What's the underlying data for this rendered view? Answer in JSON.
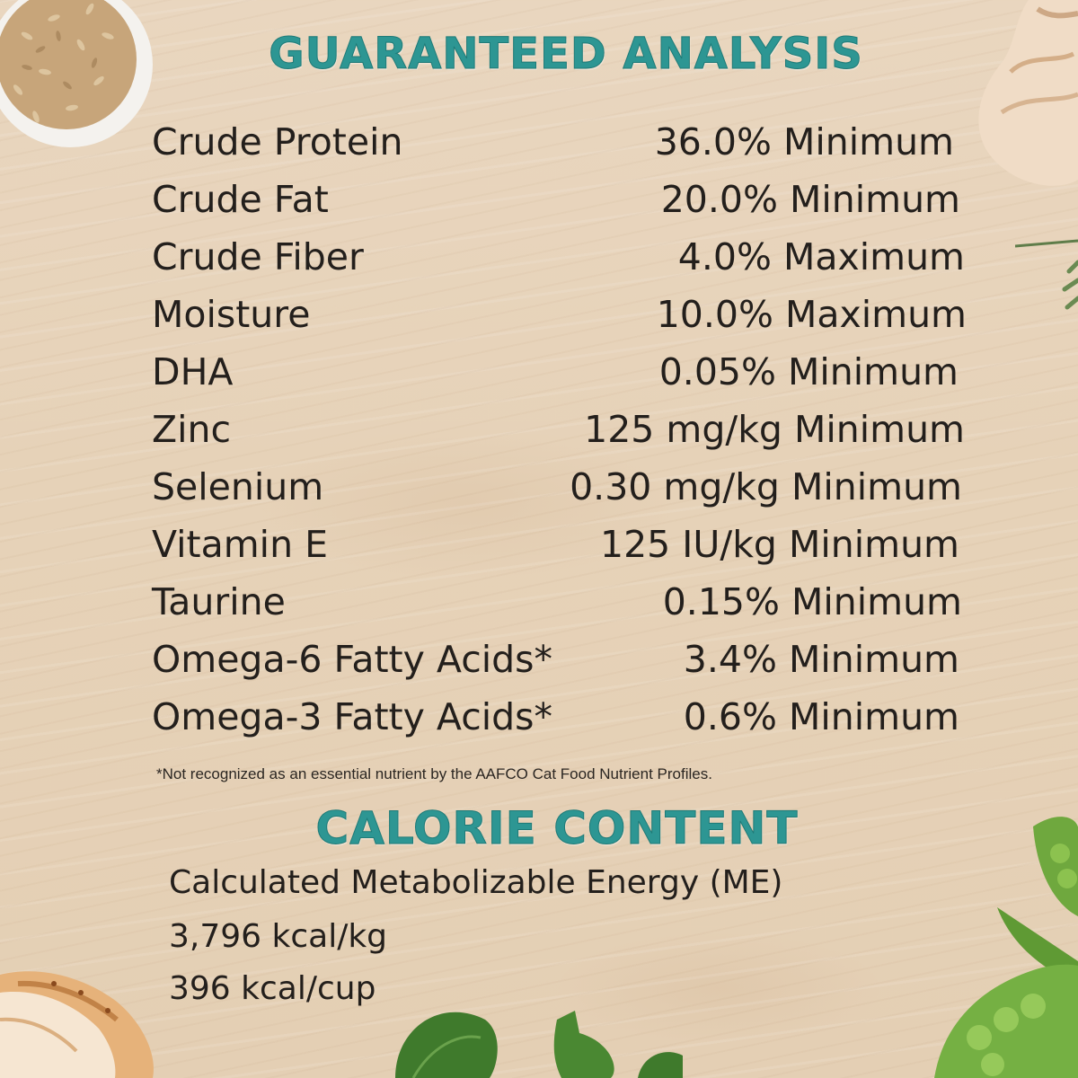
{
  "guaranteed_analysis": {
    "title": "GUARANTEED ANALYSIS",
    "rows": [
      {
        "name": "Crude Protein",
        "value": "36.0% Minimum"
      },
      {
        "name": "Crude Fat",
        "value": "20.0% Minimum"
      },
      {
        "name": "Crude Fiber",
        "value": "4.0% Maximum"
      },
      {
        "name": "Moisture",
        "value": "10.0% Maximum"
      },
      {
        "name": "DHA",
        "value": "0.05% Minimum"
      },
      {
        "name": "Zinc",
        "value": "125 mg/kg Minimum"
      },
      {
        "name": "Selenium",
        "value": "0.30 mg/kg Minimum"
      },
      {
        "name": "Vitamin E",
        "value": "125 IU/kg Minimum"
      },
      {
        "name": "Taurine",
        "value": "0.15% Minimum"
      },
      {
        "name": "Omega-6 Fatty Acids*",
        "value": "3.4% Minimum"
      },
      {
        "name": "Omega-3 Fatty Acids*",
        "value": "0.6% Minimum"
      }
    ],
    "footnote": "*Not recognized as an essential nutrient by the AAFCO Cat Food Nutrient Profiles."
  },
  "calorie_content": {
    "title": "CALORIE CONTENT",
    "line1": "Calculated Metabolizable Energy (ME)",
    "line2": "3,796 kcal/kg",
    "line3": "396 kcal/cup"
  },
  "colors": {
    "heading": "#2d9693",
    "text": "#231f1c",
    "background": "#e8d4bb"
  },
  "decorations": [
    "rice-bowl-image",
    "chicken-breast-image",
    "rosemary-image",
    "peas-image",
    "spinach-image",
    "roast-chicken-image"
  ]
}
